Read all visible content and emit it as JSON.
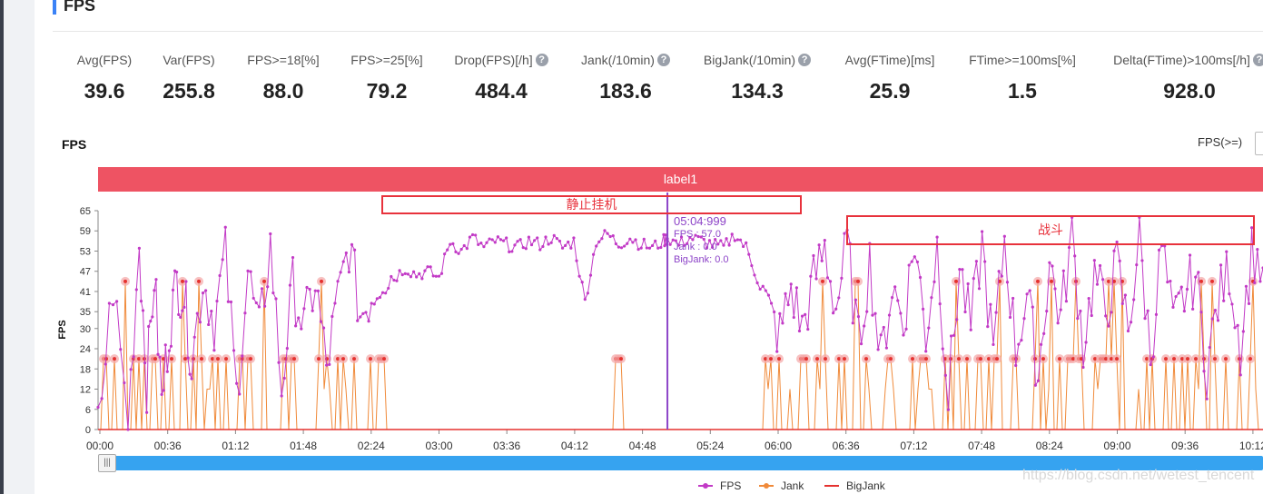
{
  "header": {
    "title": "FPS"
  },
  "stats": [
    {
      "label": "Avg(FPS)",
      "value": "39.6",
      "help": false
    },
    {
      "label": "Var(FPS)",
      "value": "255.8",
      "help": false
    },
    {
      "label": "FPS>=18[%]",
      "value": "88.0",
      "help": false
    },
    {
      "label": "FPS>=25[%]",
      "value": "79.2",
      "help": false
    },
    {
      "label": "Drop(FPS)[/h]",
      "value": "484.4",
      "help": true
    },
    {
      "label": "Jank(/10min)",
      "value": "183.6",
      "help": true
    },
    {
      "label": "BigJank(/10min)",
      "value": "134.3",
      "help": true
    },
    {
      "label": "Avg(FTime)[ms]",
      "value": "25.9",
      "help": false
    },
    {
      "label": "FTime>=100ms[%]",
      "value": "1.5",
      "help": false
    },
    {
      "label": "Delta(FTime)>100ms[/h]",
      "value": "928.0",
      "help": true
    }
  ],
  "help_glyph": "?",
  "chart_section": {
    "title": "FPS",
    "filter_label": "FPS(>=)",
    "label_band": "label1"
  },
  "annotations": {
    "idle": "静止挂机",
    "battle": "战斗"
  },
  "tooltip": {
    "time": "05:04:999",
    "rows": [
      "FPS    : 57.0",
      "Jank     : 0.0",
      "BigJank: 0.0"
    ]
  },
  "scroll_handle": "|||",
  "watermark": "https://blog.csdn.net/wetest_tencent",
  "colors": {
    "fps": "#c23ac6",
    "jank": "#f08a3a",
    "bigjank": "#e5322f",
    "label_band": "#ee5363",
    "cursor": "#8d44c8"
  },
  "chart_data": {
    "type": "line",
    "ylabel": "FPS",
    "ylim": [
      0,
      65
    ],
    "yticks": [
      0,
      6,
      12,
      18,
      24,
      30,
      35,
      41,
      47,
      53,
      59,
      65
    ],
    "xticks": [
      "00:00",
      "00:36",
      "01:12",
      "01:48",
      "02:24",
      "03:00",
      "03:36",
      "04:12",
      "04:48",
      "05:24",
      "06:00",
      "06:36",
      "07:12",
      "07:48",
      "08:24",
      "09:00",
      "09:36",
      "10:12"
    ],
    "xlim_seconds": [
      0,
      622
    ],
    "cursor_seconds": 304,
    "legend": [
      "FPS",
      "Jank",
      "BigJank"
    ],
    "series": [
      {
        "name": "FPS",
        "t": [
          0,
          8,
          16,
          22,
          26,
          30,
          34,
          38,
          42,
          46,
          50,
          56,
          62,
          68,
          74,
          80,
          86,
          92,
          98,
          104,
          110,
          116,
          122,
          128,
          134,
          140,
          146,
          152,
          158,
          164,
          170,
          176,
          182,
          188,
          194,
          200,
          206,
          212,
          218,
          224,
          230,
          236,
          242,
          248,
          254,
          260,
          266,
          272,
          278,
          284,
          290,
          296,
          302,
          304,
          310,
          316,
          322,
          328,
          334,
          340,
          346,
          352,
          358,
          364,
          370,
          376,
          382,
          388,
          394,
          400,
          406,
          412,
          418,
          424,
          430,
          436,
          442,
          448,
          454,
          460,
          466,
          472,
          478,
          484,
          490,
          496,
          502,
          508,
          514,
          520,
          526,
          532,
          538,
          544,
          550,
          556,
          562,
          568,
          574,
          580,
          586,
          592,
          598,
          604,
          610,
          616,
          622
        ],
        "values": [
          0,
          43,
          2,
          56,
          14,
          46,
          8,
          30,
          44,
          40,
          20,
          45,
          32,
          52,
          10,
          47,
          28,
          55,
          12,
          43,
          30,
          44,
          18,
          38,
          55,
          34,
          40,
          47,
          45,
          48,
          46,
          47,
          45,
          56,
          53,
          57,
          54,
          56,
          55,
          54,
          56,
          55,
          57,
          54,
          56,
          38,
          56,
          58,
          55,
          57,
          55,
          54,
          56,
          57,
          55,
          57,
          56,
          55,
          54,
          58,
          54,
          45,
          35,
          28,
          42,
          30,
          44,
          54,
          36,
          55,
          25,
          50,
          20,
          43,
          32,
          56,
          28,
          55,
          10,
          48,
          30,
          55,
          22,
          57,
          24,
          40,
          16,
          50,
          33,
          58,
          25,
          46,
          35,
          49,
          30,
          57,
          22,
          55,
          30,
          40,
          46,
          18,
          38,
          48,
          25,
          53,
          48
        ]
      },
      {
        "name": "Jank",
        "values_note": "spikes between 0 and 44; dense spikes in battle period, near 0 during idle"
      },
      {
        "name": "BigJank",
        "values_note": "0 across visible range"
      }
    ]
  }
}
